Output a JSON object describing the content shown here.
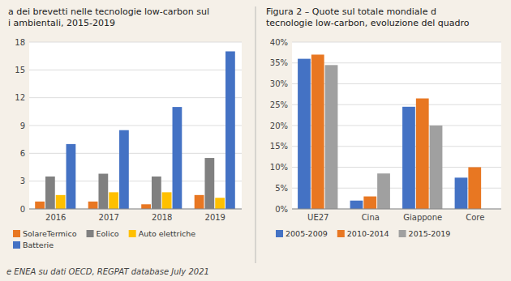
{
  "chart_data": [
    {
      "type": "bar",
      "title": "a dei brevetti nelle tecnologie low-carbon sul\ni ambientali, 2015-2019",
      "annotations": [
        "e ENEA su dati OECD, REGPAT database July 2021"
      ],
      "categories": [
        "2016",
        "2017",
        "2018",
        "2019"
      ],
      "series": [
        {
          "name": "SolareTermico",
          "color": "#E87722",
          "values": [
            0.8,
            0.8,
            0.5,
            1.5
          ]
        },
        {
          "name": "Eolico",
          "color": "#808080",
          "values": [
            3.5,
            3.8,
            3.5,
            5.5
          ]
        },
        {
          "name": "Auto elettriche",
          "color": "#FFC000",
          "values": [
            1.5,
            1.8,
            1.8,
            1.2
          ]
        },
        {
          "name": "Batterie",
          "color": "#4472C4",
          "values": [
            7.0,
            8.5,
            11.0,
            17.0
          ]
        }
      ],
      "ylim": [
        0,
        18
      ],
      "yticks": [
        0,
        3,
        6,
        9,
        12,
        15,
        18
      ],
      "grid": true,
      "legend": "bottom"
    },
    {
      "type": "bar",
      "title": "Figura 2 – Quote sul totale mondiale d\ntecnologie low-carbon, evoluzione del quadro",
      "categories": [
        "UE27",
        "Cina",
        "Giappone",
        "Core"
      ],
      "series": [
        {
          "name": "2005-2009",
          "color": "#4472C4",
          "values": [
            36.0,
            2.0,
            24.5,
            7.5
          ]
        },
        {
          "name": "2010-2014",
          "color": "#E87722",
          "values": [
            37.0,
            3.0,
            26.5,
            10.0
          ]
        },
        {
          "name": "2015-2019",
          "color": "#A0A0A0",
          "values": [
            34.5,
            8.5,
            20.0,
            0.0
          ]
        }
      ],
      "ylim": [
        0,
        40
      ],
      "yticks": [
        {
          "value": 0,
          "label": "0%"
        },
        {
          "value": 5,
          "label": "5%"
        },
        {
          "value": 10,
          "label": "10%"
        },
        {
          "value": 15,
          "label": "15%"
        },
        {
          "value": 20,
          "label": "20%"
        },
        {
          "value": 25,
          "label": "25%"
        },
        {
          "value": 30,
          "label": "30%"
        },
        {
          "value": 35,
          "label": "35%"
        },
        {
          "value": 40,
          "label": "40%"
        }
      ],
      "grid": true,
      "legend": "bottom"
    }
  ]
}
